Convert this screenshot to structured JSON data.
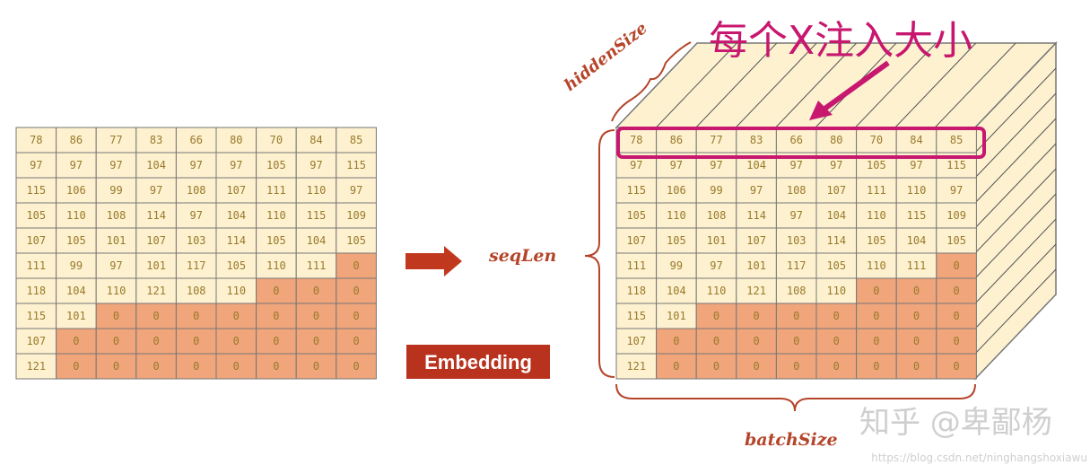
{
  "title": "每个X注入大小",
  "labels": {
    "hidden_size": "hiddenSize",
    "seq_len": "seqLen",
    "batch_size": "batchSize",
    "embedding": "Embedding"
  },
  "watermark": {
    "main": "知乎 @卑鄙杨",
    "url": "https://blog.csdn.net/ninghangshoxiawu"
  },
  "colors": {
    "cell": "#fdf1d0",
    "padded": "#f0a57a",
    "grid": "#777777",
    "highlight": "#c8176f",
    "accent": "#c0391f"
  },
  "matrix": [
    [
      78,
      86,
      77,
      83,
      66,
      80,
      70,
      84,
      85
    ],
    [
      97,
      97,
      97,
      104,
      97,
      97,
      105,
      97,
      115
    ],
    [
      115,
      106,
      99,
      97,
      108,
      107,
      111,
      110,
      97
    ],
    [
      105,
      110,
      108,
      114,
      97,
      104,
      110,
      115,
      109
    ],
    [
      107,
      105,
      101,
      107,
      103,
      114,
      105,
      104,
      105
    ],
    [
      111,
      99,
      97,
      101,
      117,
      105,
      110,
      111,
      0
    ],
    [
      118,
      104,
      110,
      121,
      108,
      110,
      0,
      0,
      0
    ],
    [
      115,
      101,
      0,
      0,
      0,
      0,
      0,
      0,
      0
    ],
    [
      107,
      0,
      0,
      0,
      0,
      0,
      0,
      0,
      0
    ],
    [
      121,
      0,
      0,
      0,
      0,
      0,
      0,
      0,
      0
    ]
  ]
}
